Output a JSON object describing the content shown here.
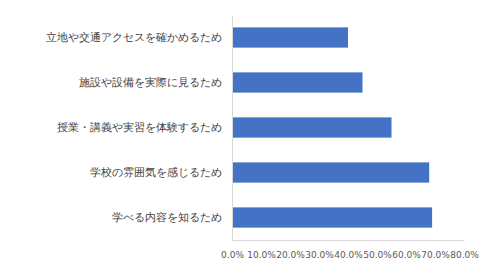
{
  "chart_data": {
    "type": "bar",
    "orientation": "horizontal",
    "categories": [
      "立地や交通アクセスを確かめるため",
      "施設や設備を実際に見るため",
      "授業・講義や実習を体験するため",
      "学校の雰囲気を感じるため",
      "学べる内容を知るため"
    ],
    "values": [
      40,
      45,
      55,
      68,
      69
    ],
    "color": "#4472c4",
    "xlim": [
      0,
      80
    ],
    "xticks": [
      {
        "value": 0,
        "label": "0.0%"
      },
      {
        "value": 10,
        "label": "10.0%"
      },
      {
        "value": 20,
        "label": "20.0%"
      },
      {
        "value": 30,
        "label": "30.0%"
      },
      {
        "value": 40,
        "label": "40.0%"
      },
      {
        "value": 50,
        "label": "50.0%"
      },
      {
        "value": 60,
        "label": "60.0%"
      },
      {
        "value": 70,
        "label": "70.0%"
      },
      {
        "value": 80,
        "label": "80.0%"
      }
    ],
    "grid": false
  }
}
